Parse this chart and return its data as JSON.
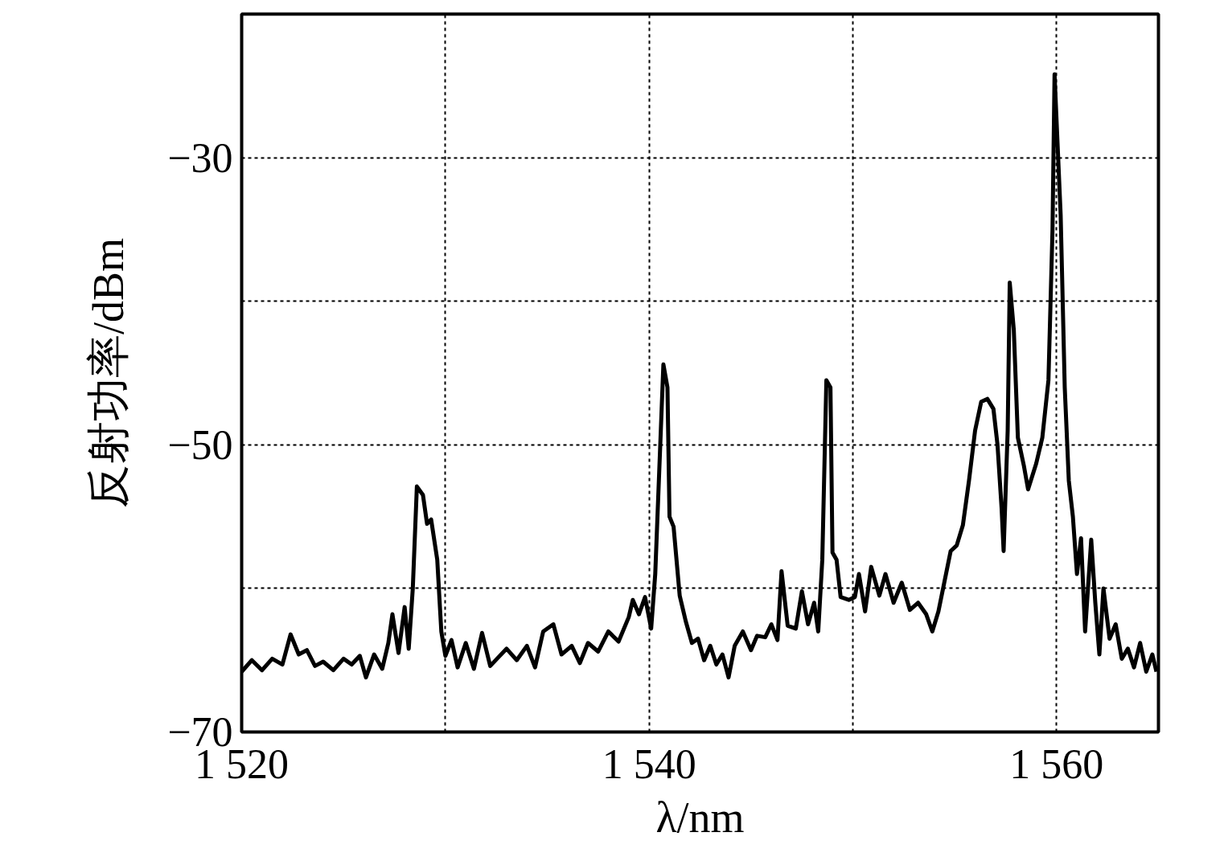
{
  "chart_data": {
    "type": "line",
    "xlabel": "λ/nm",
    "ylabel": "反射功率/dBm",
    "xlim": [
      1520,
      1565
    ],
    "ylim": [
      -70,
      -20
    ],
    "xticks": [
      {
        "value": 1520,
        "label": "1 520"
      },
      {
        "value": 1530,
        "label": null
      },
      {
        "value": 1540,
        "label": "1 540"
      },
      {
        "value": 1550,
        "label": null
      },
      {
        "value": 1560,
        "label": "1 560"
      }
    ],
    "yticks": [
      {
        "value": -30,
        "label": "−30"
      },
      {
        "value": -40,
        "label": null
      },
      {
        "value": -50,
        "label": "−50"
      },
      {
        "value": -60,
        "label": null
      },
      {
        "value": -70,
        "label": "−70"
      }
    ],
    "grid": true,
    "line_style": "solid",
    "series": [
      {
        "color": "#000000",
        "x": [
          1520.0,
          1520.5,
          1521.0,
          1521.5,
          1522.0,
          1522.4,
          1522.8,
          1523.2,
          1523.6,
          1524.0,
          1524.5,
          1525.0,
          1525.4,
          1525.8,
          1526.1,
          1526.5,
          1526.9,
          1527.2,
          1527.4,
          1527.7,
          1528.0,
          1528.2,
          1528.4,
          1528.6,
          1528.9,
          1529.1,
          1529.3,
          1529.6,
          1529.8,
          1530.0,
          1530.3,
          1530.6,
          1531.0,
          1531.4,
          1531.8,
          1532.2,
          1532.6,
          1533.0,
          1533.5,
          1534.0,
          1534.4,
          1534.8,
          1535.3,
          1535.7,
          1536.2,
          1536.6,
          1537.0,
          1537.5,
          1538.0,
          1538.5,
          1539.0,
          1539.2,
          1539.5,
          1539.8,
          1540.1,
          1540.3,
          1540.7,
          1540.9,
          1541.0,
          1541.2,
          1541.5,
          1541.8,
          1542.1,
          1542.4,
          1542.7,
          1543.0,
          1543.3,
          1543.6,
          1543.9,
          1544.2,
          1544.6,
          1545.0,
          1545.3,
          1545.7,
          1546.0,
          1546.3,
          1546.5,
          1546.8,
          1547.2,
          1547.5,
          1547.8,
          1548.1,
          1548.3,
          1548.5,
          1548.7,
          1548.9,
          1549.0,
          1549.2,
          1549.4,
          1549.8,
          1550.1,
          1550.3,
          1550.6,
          1550.9,
          1551.3,
          1551.6,
          1552.0,
          1552.4,
          1552.8,
          1553.2,
          1553.6,
          1553.9,
          1554.2,
          1554.5,
          1554.8,
          1555.1,
          1555.4,
          1555.7,
          1556.0,
          1556.3,
          1556.6,
          1556.9,
          1557.1,
          1557.3,
          1557.4,
          1557.6,
          1557.7,
          1557.9,
          1558.1,
          1558.4,
          1558.6,
          1559.0,
          1559.3,
          1559.6,
          1559.8,
          1559.9,
          1560.2,
          1560.4,
          1560.6,
          1560.8,
          1561.0,
          1561.2,
          1561.4,
          1561.7,
          1561.9,
          1562.1,
          1562.3,
          1562.6,
          1562.9,
          1563.2,
          1563.5,
          1563.8,
          1564.1,
          1564.4,
          1564.7,
          1564.9
        ],
        "values": [
          -65.8,
          -65.0,
          -65.7,
          -64.9,
          -65.3,
          -63.2,
          -64.6,
          -64.3,
          -65.4,
          -65.1,
          -65.7,
          -64.9,
          -65.3,
          -64.7,
          -66.2,
          -64.6,
          -65.6,
          -63.8,
          -61.8,
          -64.5,
          -61.3,
          -64.2,
          -60.0,
          -52.9,
          -53.5,
          -55.5,
          -55.2,
          -58.0,
          -63.0,
          -64.7,
          -63.6,
          -65.5,
          -63.8,
          -65.6,
          -63.1,
          -65.4,
          -64.8,
          -64.2,
          -65.0,
          -64.0,
          -65.5,
          -63.0,
          -62.5,
          -64.6,
          -64.0,
          -65.2,
          -63.8,
          -64.4,
          -63.0,
          -63.7,
          -62.0,
          -60.8,
          -61.8,
          -60.6,
          -62.8,
          -59.0,
          -44.4,
          -46.0,
          -55.0,
          -55.7,
          -60.5,
          -62.3,
          -63.8,
          -63.5,
          -65.0,
          -64.0,
          -65.3,
          -64.6,
          -66.2,
          -64.0,
          -63.0,
          -64.3,
          -63.3,
          -63.4,
          -62.5,
          -63.6,
          -58.8,
          -62.6,
          -62.8,
          -60.2,
          -62.5,
          -61.0,
          -63.0,
          -58.0,
          -45.5,
          -46.0,
          -57.5,
          -58.0,
          -60.6,
          -60.8,
          -60.6,
          -59.0,
          -61.6,
          -58.5,
          -60.5,
          -59.0,
          -61.0,
          -59.6,
          -61.5,
          -61.0,
          -61.8,
          -63.0,
          -61.6,
          -59.5,
          -57.4,
          -57.0,
          -55.6,
          -52.5,
          -49.0,
          -47.0,
          -46.8,
          -47.5,
          -50.0,
          -54.4,
          -57.4,
          -49.0,
          -38.7,
          -42.0,
          -49.5,
          -51.5,
          -53.1,
          -51.3,
          -49.5,
          -45.5,
          -35.0,
          -24.2,
          -34.0,
          -46.0,
          -52.5,
          -55.0,
          -59.0,
          -56.5,
          -63.0,
          -56.6,
          -61.0,
          -64.6,
          -60.0,
          -63.5,
          -62.5,
          -64.9,
          -64.2,
          -65.5,
          -63.8,
          -65.8,
          -64.6,
          -65.8
        ]
      }
    ]
  }
}
